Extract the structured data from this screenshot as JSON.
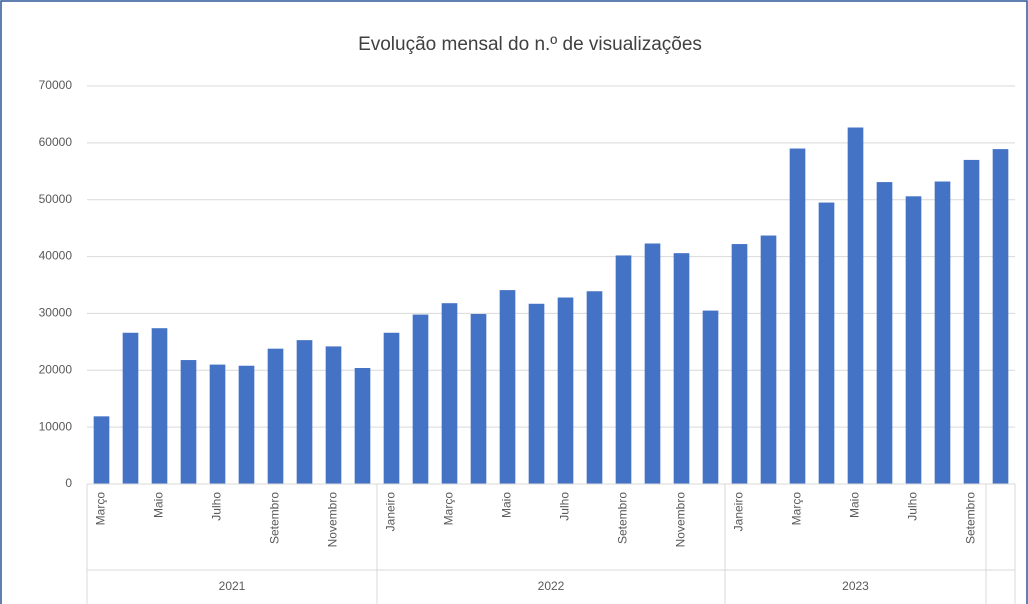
{
  "chart_data": {
    "type": "bar",
    "title": "Evolução mensal do n.º de visualizações",
    "categories": [
      "Março",
      null,
      "Maio",
      null,
      "Julho",
      null,
      "Setembro",
      null,
      "Novembro",
      null,
      "Janeiro",
      null,
      "Março",
      null,
      "Maio",
      null,
      "Julho",
      null,
      "Setembro",
      null,
      "Novembro",
      null,
      "Janeiro",
      null,
      "Março",
      null,
      "Maio",
      null,
      "Julho",
      null,
      "Setembro",
      null
    ],
    "groups": [
      {
        "name": "2021",
        "size": 10
      },
      {
        "name": "2022",
        "size": 12
      },
      {
        "name": "2023",
        "size": 9
      },
      {
        "name": null,
        "size": 1
      }
    ],
    "values": [
      11900,
      26600,
      27400,
      21800,
      21000,
      20800,
      23800,
      25300,
      24200,
      20400,
      26600,
      29800,
      31800,
      29900,
      34100,
      31700,
      32800,
      33900,
      40200,
      42300,
      40600,
      30500,
      42200,
      43700,
      59000,
      49500,
      62700,
      53100,
      50600,
      53200,
      57000,
      58900
    ],
    "color": "#4472c4",
    "ylim": [
      0,
      70000
    ],
    "yticks": [
      0,
      10000,
      20000,
      30000,
      40000,
      50000,
      60000,
      70000
    ],
    "grid": true
  }
}
